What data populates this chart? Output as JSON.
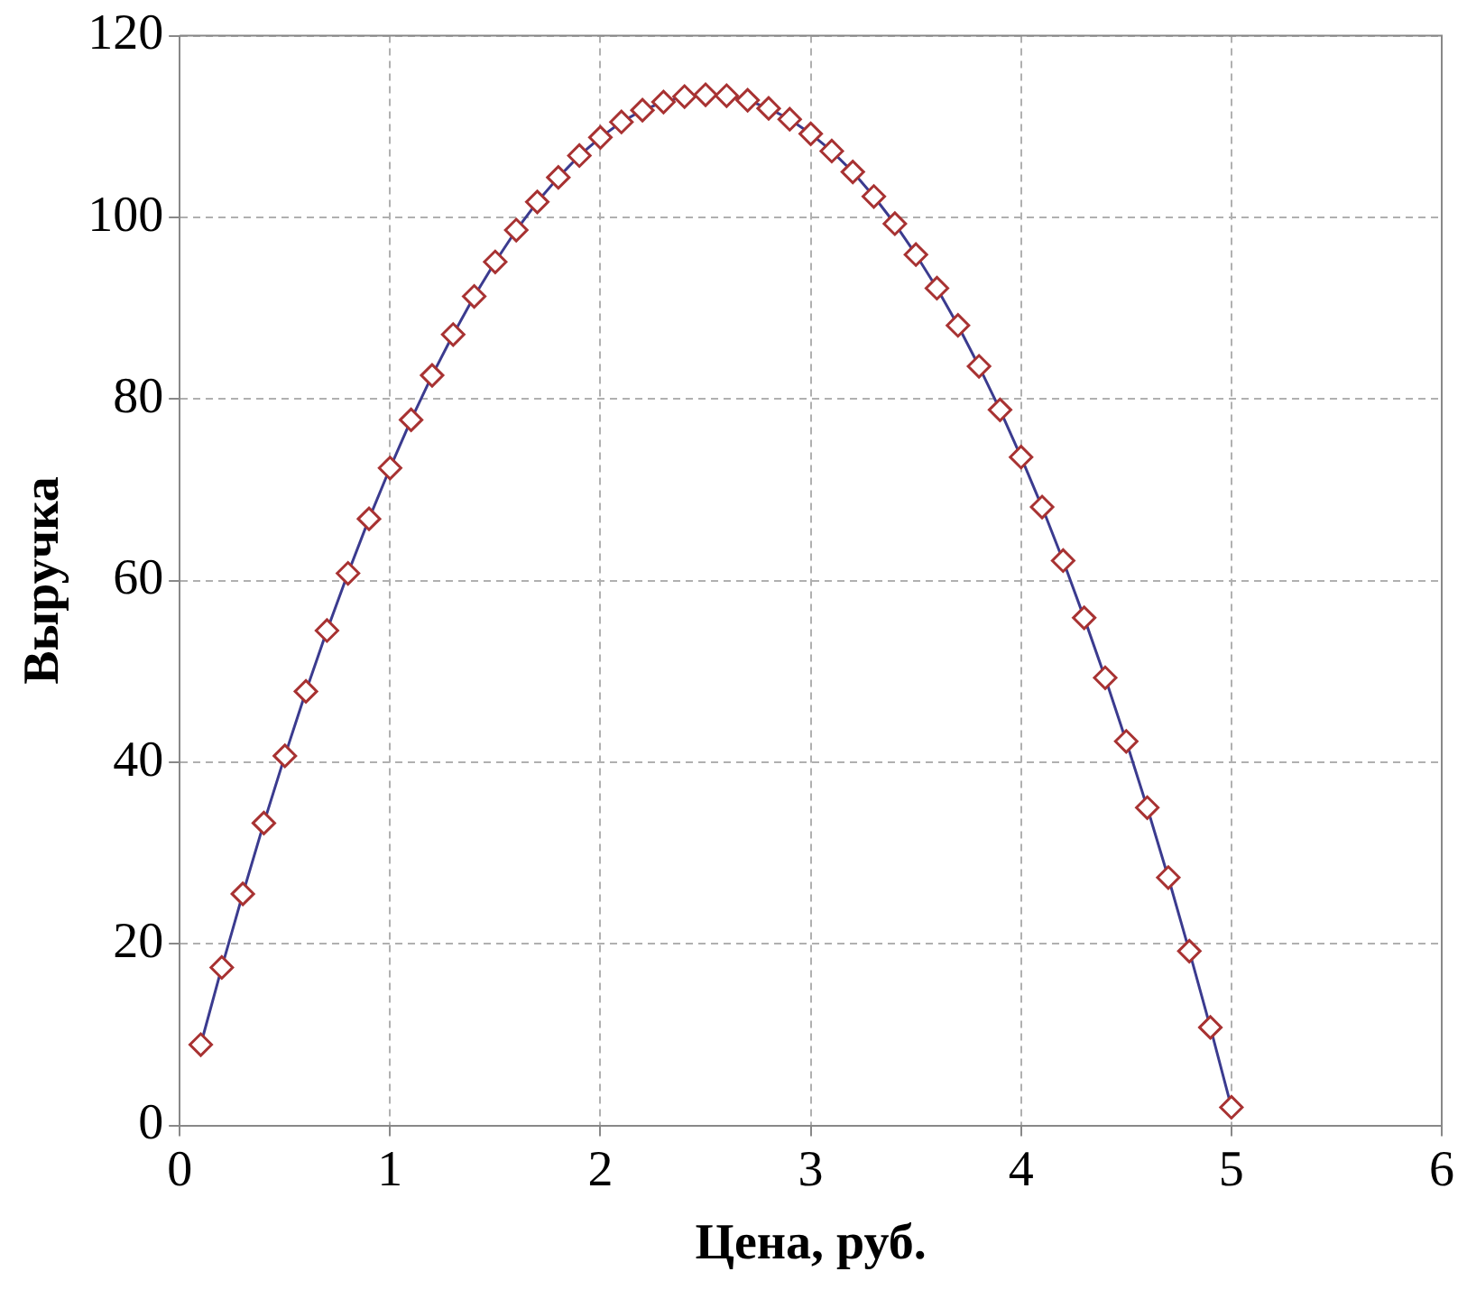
{
  "chart_data": {
    "type": "line",
    "xlabel": "Цена, руб.",
    "ylabel": "Выручка",
    "x": [
      0.1,
      0.2,
      0.3,
      0.4,
      0.5,
      0.6,
      0.7,
      0.8,
      0.9,
      1.0,
      1.1,
      1.2,
      1.3,
      1.4,
      1.5,
      1.6,
      1.7,
      1.8,
      1.9,
      2.0,
      2.1,
      2.2,
      2.3,
      2.4,
      2.5,
      2.6,
      2.7,
      2.8,
      2.9,
      3.0,
      3.1,
      3.2,
      3.3,
      3.4,
      3.5,
      3.6,
      3.7,
      3.8,
      3.9,
      4.0,
      4.1,
      4.2,
      4.3,
      4.4,
      4.5,
      4.6,
      4.7,
      4.8,
      4.9,
      5.0
    ],
    "series": [
      {
        "color": "#3b3b8f",
        "values": [
          8.9,
          17.4,
          25.5,
          33.3,
          40.7,
          47.8,
          54.5,
          60.8,
          66.8,
          72.4,
          77.7,
          82.6,
          87.1,
          91.3,
          95.1,
          98.6,
          101.7,
          104.4,
          106.8,
          108.8,
          110.5,
          111.8,
          112.7,
          113.3,
          113.5,
          113.4,
          112.9,
          112.0,
          110.8,
          109.2,
          107.3,
          105.0,
          102.3,
          99.3,
          95.9,
          92.2,
          88.1,
          83.6,
          78.8,
          73.6,
          68.1,
          62.2,
          55.9,
          49.3,
          42.3,
          35.0,
          27.3,
          19.2,
          10.8,
          2.0
        ]
      }
    ],
    "xlim": [
      0,
      6
    ],
    "xticks": [
      0,
      1,
      2,
      3,
      4,
      5,
      6
    ],
    "ylim": [
      0,
      120
    ],
    "yticks": [
      0,
      20,
      40,
      60,
      80,
      100,
      120
    ],
    "grid": true,
    "legend": false,
    "marker": "diamond",
    "line_style": "solid"
  }
}
